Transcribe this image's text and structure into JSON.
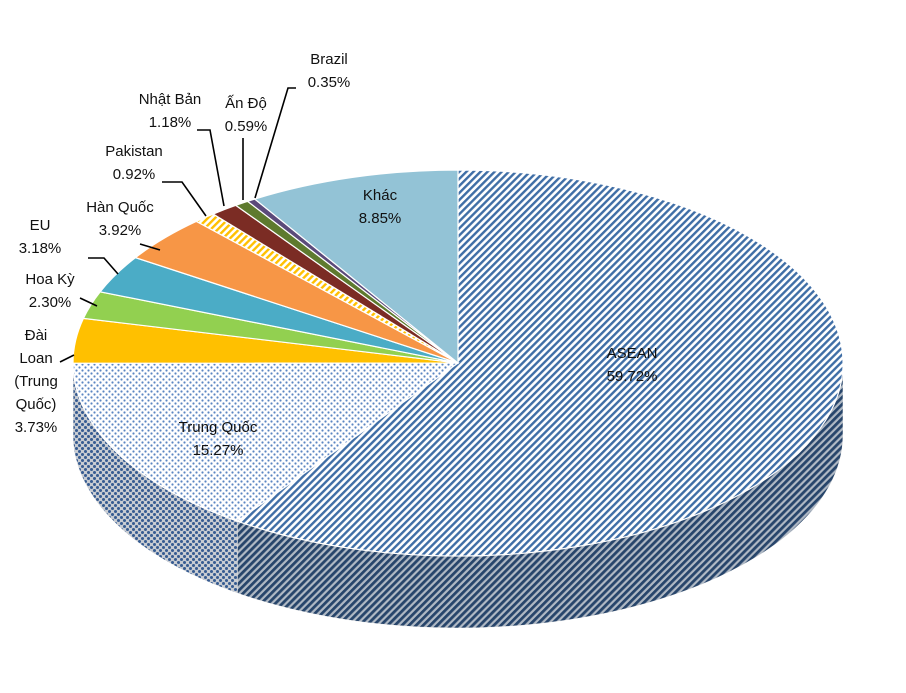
{
  "chart_data": {
    "type": "pie",
    "title": "",
    "three_d": true,
    "legend": "none",
    "slices": [
      {
        "label": "ASEAN",
        "value": 59.72,
        "value_label": "59.72%",
        "color": "#3f6ea6",
        "pattern": "diagonal-stripes"
      },
      {
        "label": "Trung Quốc",
        "value": 15.27,
        "value_label": "15.27%",
        "color": "#4a78b8",
        "pattern": "dots"
      },
      {
        "label": "Đài Loan (Trung Quốc)",
        "value": 3.73,
        "value_label": "3.73%",
        "color": "#ffc000",
        "pattern": "solid"
      },
      {
        "label": "Hoa Kỳ",
        "value": 2.3,
        "value_label": "2.30%",
        "color": "#92d050",
        "pattern": "solid"
      },
      {
        "label": "EU",
        "value": 3.18,
        "value_label": "3.18%",
        "color": "#4bacc6",
        "pattern": "solid"
      },
      {
        "label": "Hàn Quốc",
        "value": 3.92,
        "value_label": "3.92%",
        "color": "#f79646",
        "pattern": "solid"
      },
      {
        "label": "Pakistan",
        "value": 0.92,
        "value_label": "0.92%",
        "color": "#ffc000",
        "pattern": "diagonal-stripes"
      },
      {
        "label": "Nhật Bản",
        "value": 1.18,
        "value_label": "1.18%",
        "color": "#7b2c24",
        "pattern": "solid"
      },
      {
        "label": "Ấn Độ",
        "value": 0.59,
        "value_label": "0.59%",
        "color": "#5e7a2e",
        "pattern": "solid"
      },
      {
        "label": "Brazil",
        "value": 0.35,
        "value_label": "0.35%",
        "color": "#5b4a7a",
        "pattern": "solid"
      },
      {
        "label": "Khác",
        "value": 8.85,
        "value_label": "8.85%",
        "color": "#93c3d6",
        "pattern": "solid"
      }
    ]
  }
}
